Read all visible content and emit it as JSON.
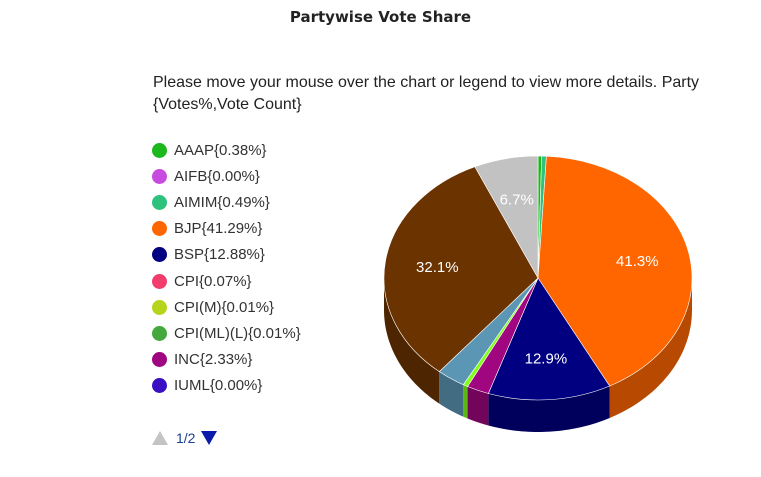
{
  "chart_data": {
    "type": "pie",
    "title": "Partywise Vote Share",
    "subtitle": "Please move your mouse over the chart or legend to view more details. Party {Votes%,Vote Count}",
    "legend": [
      {
        "label": "AAAP{0.38%}",
        "color": "#1db81d"
      },
      {
        "label": "AIFB{0.00%}",
        "color": "#c84be0"
      },
      {
        "label": "AIMIM{0.49%}",
        "color": "#2ec27e"
      },
      {
        "label": "BJP{41.29%}",
        "color": "#ff6600"
      },
      {
        "label": "BSP{12.88%}",
        "color": "#000080"
      },
      {
        "label": "CPI{0.07%}",
        "color": "#f23c6e"
      },
      {
        "label": "CPI(M){0.01%}",
        "color": "#b5d41a"
      },
      {
        "label": "CPI(ML)(L){0.01%}",
        "color": "#44a83c"
      },
      {
        "label": "INC{2.33%}",
        "color": "#a0067f"
      },
      {
        "label": "IUML{0.00%}",
        "color": "#3a0fc4"
      }
    ],
    "slices": [
      {
        "value": 0.38,
        "color": "#1db81d",
        "label": ""
      },
      {
        "value": 0.49,
        "color": "#2ec27e",
        "label": ""
      },
      {
        "value": 41.29,
        "color": "#ff6600",
        "label": "41.3%"
      },
      {
        "value": 12.88,
        "color": "#000080",
        "label": "12.9%"
      },
      {
        "value": 2.33,
        "color": "#a0067f",
        "label": ""
      },
      {
        "value": 0.5,
        "color": "#7fff1a",
        "label": ""
      },
      {
        "value": 3.0,
        "color": "#5b96b5",
        "label": ""
      },
      {
        "value": 32.1,
        "color": "#6b3300",
        "label": "32.1%"
      },
      {
        "value": 6.7,
        "color": "#c2c2c2",
        "label": "6.7%"
      }
    ],
    "pager": "1/2"
  }
}
